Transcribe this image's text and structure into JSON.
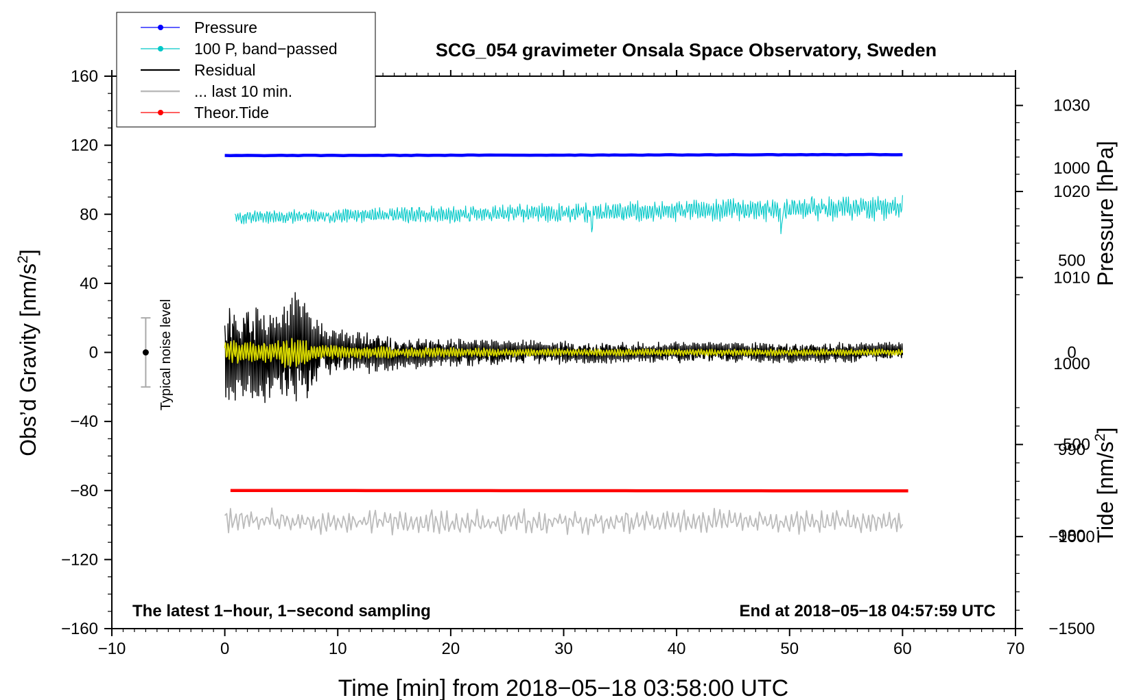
{
  "chart_data": {
    "type": "line",
    "title": "SCG_054 gravimeter Onsala Space Observatory, Sweden",
    "xlabel": "Time [min] from 2018−05−18 03:58:00 UTC",
    "ylabel_left": "Obs’d Gravity [nm/s",
    "ylabel_left_sup": "2",
    "ylabel_left_end": "]",
    "ylabel_pressure": "Pressure [hPa]",
    "ylabel_tide": "Tide [nm/s",
    "ylabel_tide_sup": "2",
    "ylabel_tide_end": "]",
    "xlim": [
      -10,
      70
    ],
    "ylim": [
      -160,
      160
    ],
    "pressure_lim": [
      969.2,
      1033.4
    ],
    "tide_lim": [
      -1500,
      1500
    ],
    "x_ticks": [
      -10,
      0,
      10,
      20,
      30,
      40,
      50,
      60,
      70
    ],
    "x_tick_labels": [
      "−10",
      "0",
      "10",
      "20",
      "30",
      "40",
      "50",
      "60",
      "70"
    ],
    "y_ticks": [
      -160,
      -120,
      -80,
      -40,
      0,
      40,
      80,
      120,
      160
    ],
    "y_tick_labels": [
      "−160",
      "−120",
      "−80",
      "−40",
      "0",
      "40",
      "80",
      "120",
      "160"
    ],
    "pressure_ticks": [
      980,
      990,
      1000,
      1010,
      1020,
      1030
    ],
    "pressure_tick_labels": [
      "980",
      "990",
      "1000",
      "1010",
      "1020",
      "1030"
    ],
    "tide_ticks": [
      -1500,
      -1000,
      -500,
      0,
      500,
      1000
    ],
    "tide_tick_labels": [
      "−1500",
      "−1000",
      "−500",
      "0",
      "500",
      "1000"
    ],
    "legend": [
      {
        "label": "Pressure",
        "color": "#0000ff",
        "marker": true
      },
      {
        "label": "100 P, band−passed",
        "color": "#00c8c8",
        "marker": true
      },
      {
        "label": "Residual",
        "color": "#000000",
        "marker": false
      },
      {
        "label": "... last 10 min.",
        "color": "#bbbbbb",
        "marker": false
      },
      {
        "label": "Theor.Tide",
        "color": "#ff0000",
        "marker": true
      }
    ],
    "legend_position": "top-left",
    "noise_label": "Typical noise level",
    "noise_bar": {
      "x": -7,
      "center": 0,
      "low": -20,
      "high": 20
    },
    "annotation_left": "The latest 1−hour, 1−second sampling",
    "annotation_right": "End at 2018−05−18 04:57:59 UTC",
    "series": [
      {
        "name": "Pressure",
        "axis": "left",
        "color": "#0000ff",
        "x_range": [
          0,
          60
        ],
        "level_hPa": 1016.2,
        "plot_level": 114
      },
      {
        "name": "100 P, band−passed",
        "axis": "left",
        "color": "#00c8c8",
        "x_range": [
          0.9,
          60
        ],
        "offset": 80,
        "amplitude_start": 4,
        "amplitude_end": 8
      },
      {
        "name": "Residual",
        "axis": "left",
        "color": "#000000",
        "x_range": [
          0,
          60
        ],
        "offset": 0,
        "max_value": 52,
        "min_value": -48
      },
      {
        "name": "Residual (smoothed)",
        "axis": "left",
        "color": "#d8d800",
        "x_range": [
          0,
          60
        ],
        "offset": 0,
        "amplitude": 6
      },
      {
        "name": "... last 10 min.",
        "axis": "left",
        "color": "#bbbbbb",
        "x_range": [
          0,
          60
        ],
        "offset": -98,
        "amplitude": 8
      },
      {
        "name": "Theor.Tide",
        "axis": "left",
        "color": "#ff0000",
        "x_range": [
          0.5,
          60.5
        ],
        "plot_level": -80,
        "tide_value": 0
      }
    ]
  }
}
